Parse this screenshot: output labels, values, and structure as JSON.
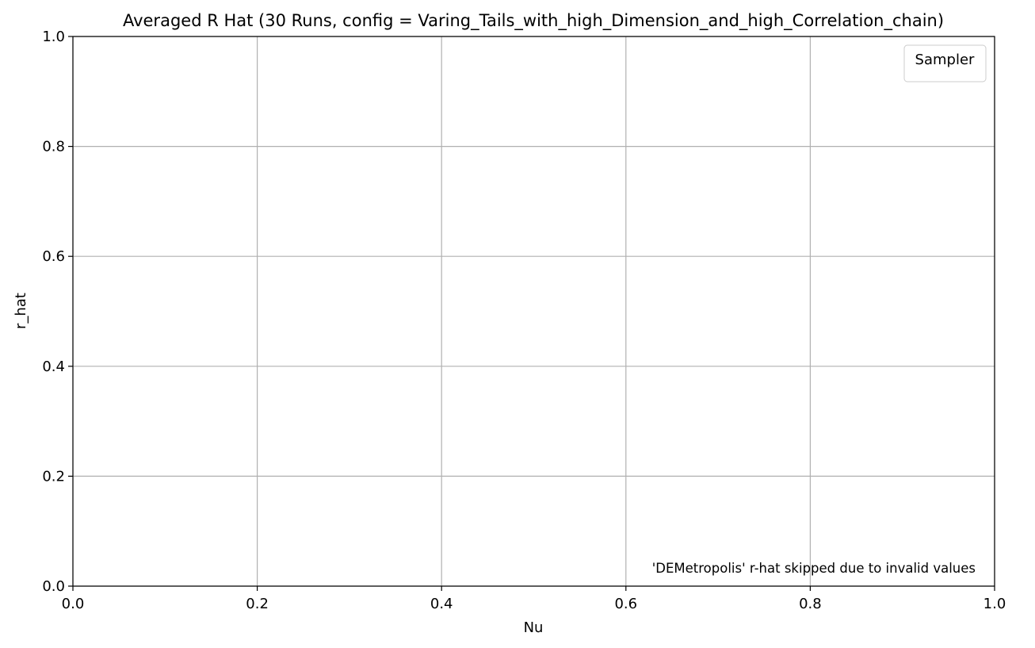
{
  "chart_data": {
    "type": "line",
    "title": "Averaged R Hat (30 Runs, config = Varing_Tails_with_high_Dimension_and_high_Correlation_chain)",
    "xlabel": "Nu",
    "ylabel": "r_hat",
    "xlim": [
      0.0,
      1.0
    ],
    "ylim": [
      0.0,
      1.0
    ],
    "xticks": [
      0.0,
      0.2,
      0.4,
      0.6,
      0.8,
      1.0
    ],
    "yticks": [
      0.0,
      0.2,
      0.4,
      0.6,
      0.8,
      1.0
    ],
    "xtick_labels": [
      "0.0",
      "0.2",
      "0.4",
      "0.6",
      "0.8",
      "1.0"
    ],
    "ytick_labels": [
      "0.0",
      "0.2",
      "0.4",
      "0.6",
      "0.8",
      "1.0"
    ],
    "grid": true,
    "series": [],
    "legend": {
      "title": "Sampler",
      "position": "upper-right",
      "entries": []
    },
    "annotations": [
      {
        "text": "'DEMetropolis' r-hat skipped due to invalid values",
        "position": "lower-right",
        "color": "#ff0000"
      }
    ]
  }
}
